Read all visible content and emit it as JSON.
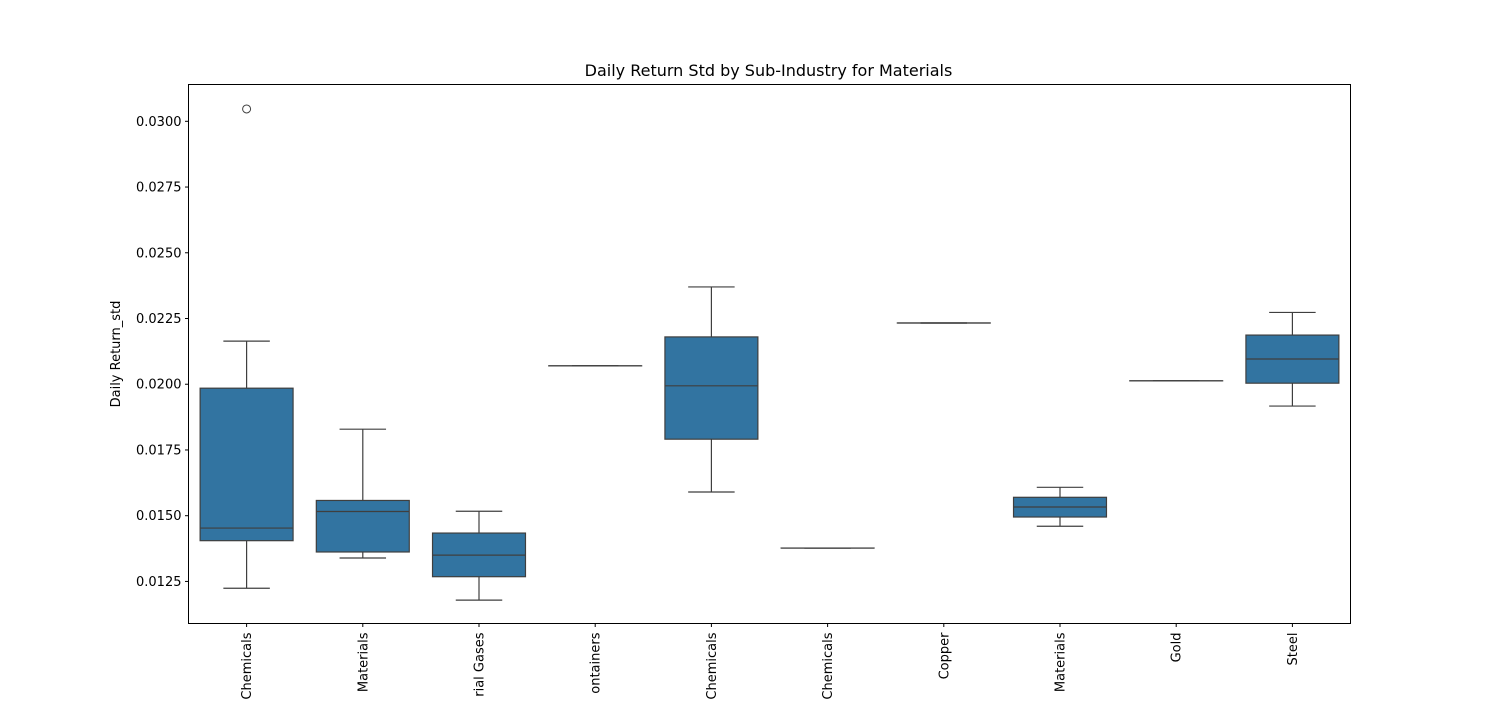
{
  "chart_data": {
    "type": "box",
    "title": "Daily Return Std by Sub-Industry for Materials",
    "xlabel": "",
    "ylabel": "Daily Return_std",
    "ylim": [
      0.0109,
      0.0314
    ],
    "yticks": [
      0.0125,
      0.015,
      0.0175,
      0.02,
      0.0225,
      0.025,
      0.0275,
      0.03
    ],
    "ytick_labels": [
      "0.0125",
      "0.0150",
      "0.0175",
      "0.0200",
      "0.0225",
      "0.0250",
      "0.0275",
      "0.0300"
    ],
    "grid": false,
    "box_color": "#3274a1",
    "categories": [
      {
        "label": "Chemicals",
        "whisker_low": 0.01224,
        "q1": 0.01405,
        "median": 0.01453,
        "q3": 0.01985,
        "whisker_high": 0.02164,
        "outliers": [
          0.03047
        ]
      },
      {
        "label": "Materials",
        "whisker_low": 0.01339,
        "q1": 0.01362,
        "median": 0.01516,
        "q3": 0.01558,
        "whisker_high": 0.01829,
        "outliers": []
      },
      {
        "label": "rial Gases",
        "whisker_low": 0.01179,
        "q1": 0.01268,
        "median": 0.0135,
        "q3": 0.01434,
        "whisker_high": 0.01517,
        "outliers": []
      },
      {
        "label": "ontainers",
        "whisker_low": 0.0207,
        "q1": 0.0207,
        "median": 0.0207,
        "q3": 0.0207,
        "whisker_high": 0.0207,
        "outliers": []
      },
      {
        "label": "Chemicals",
        "whisker_low": 0.0159,
        "q1": 0.01791,
        "median": 0.01994,
        "q3": 0.0218,
        "whisker_high": 0.0237,
        "outliers": []
      },
      {
        "label": "Chemicals",
        "whisker_low": 0.01377,
        "q1": 0.01377,
        "median": 0.01377,
        "q3": 0.01377,
        "whisker_high": 0.01377,
        "outliers": []
      },
      {
        "label": "Copper",
        "whisker_low": 0.02233,
        "q1": 0.02233,
        "median": 0.02233,
        "q3": 0.02233,
        "whisker_high": 0.02233,
        "outliers": []
      },
      {
        "label": "Materials",
        "whisker_low": 0.0146,
        "q1": 0.01495,
        "median": 0.01533,
        "q3": 0.0157,
        "whisker_high": 0.01608,
        "outliers": []
      },
      {
        "label": "Gold",
        "whisker_low": 0.02013,
        "q1": 0.02013,
        "median": 0.02013,
        "q3": 0.02013,
        "whisker_high": 0.02013,
        "outliers": []
      },
      {
        "label": "Steel",
        "whisker_low": 0.01917,
        "q1": 0.02004,
        "median": 0.02096,
        "q3": 0.02187,
        "whisker_high": 0.02273,
        "outliers": []
      }
    ]
  }
}
